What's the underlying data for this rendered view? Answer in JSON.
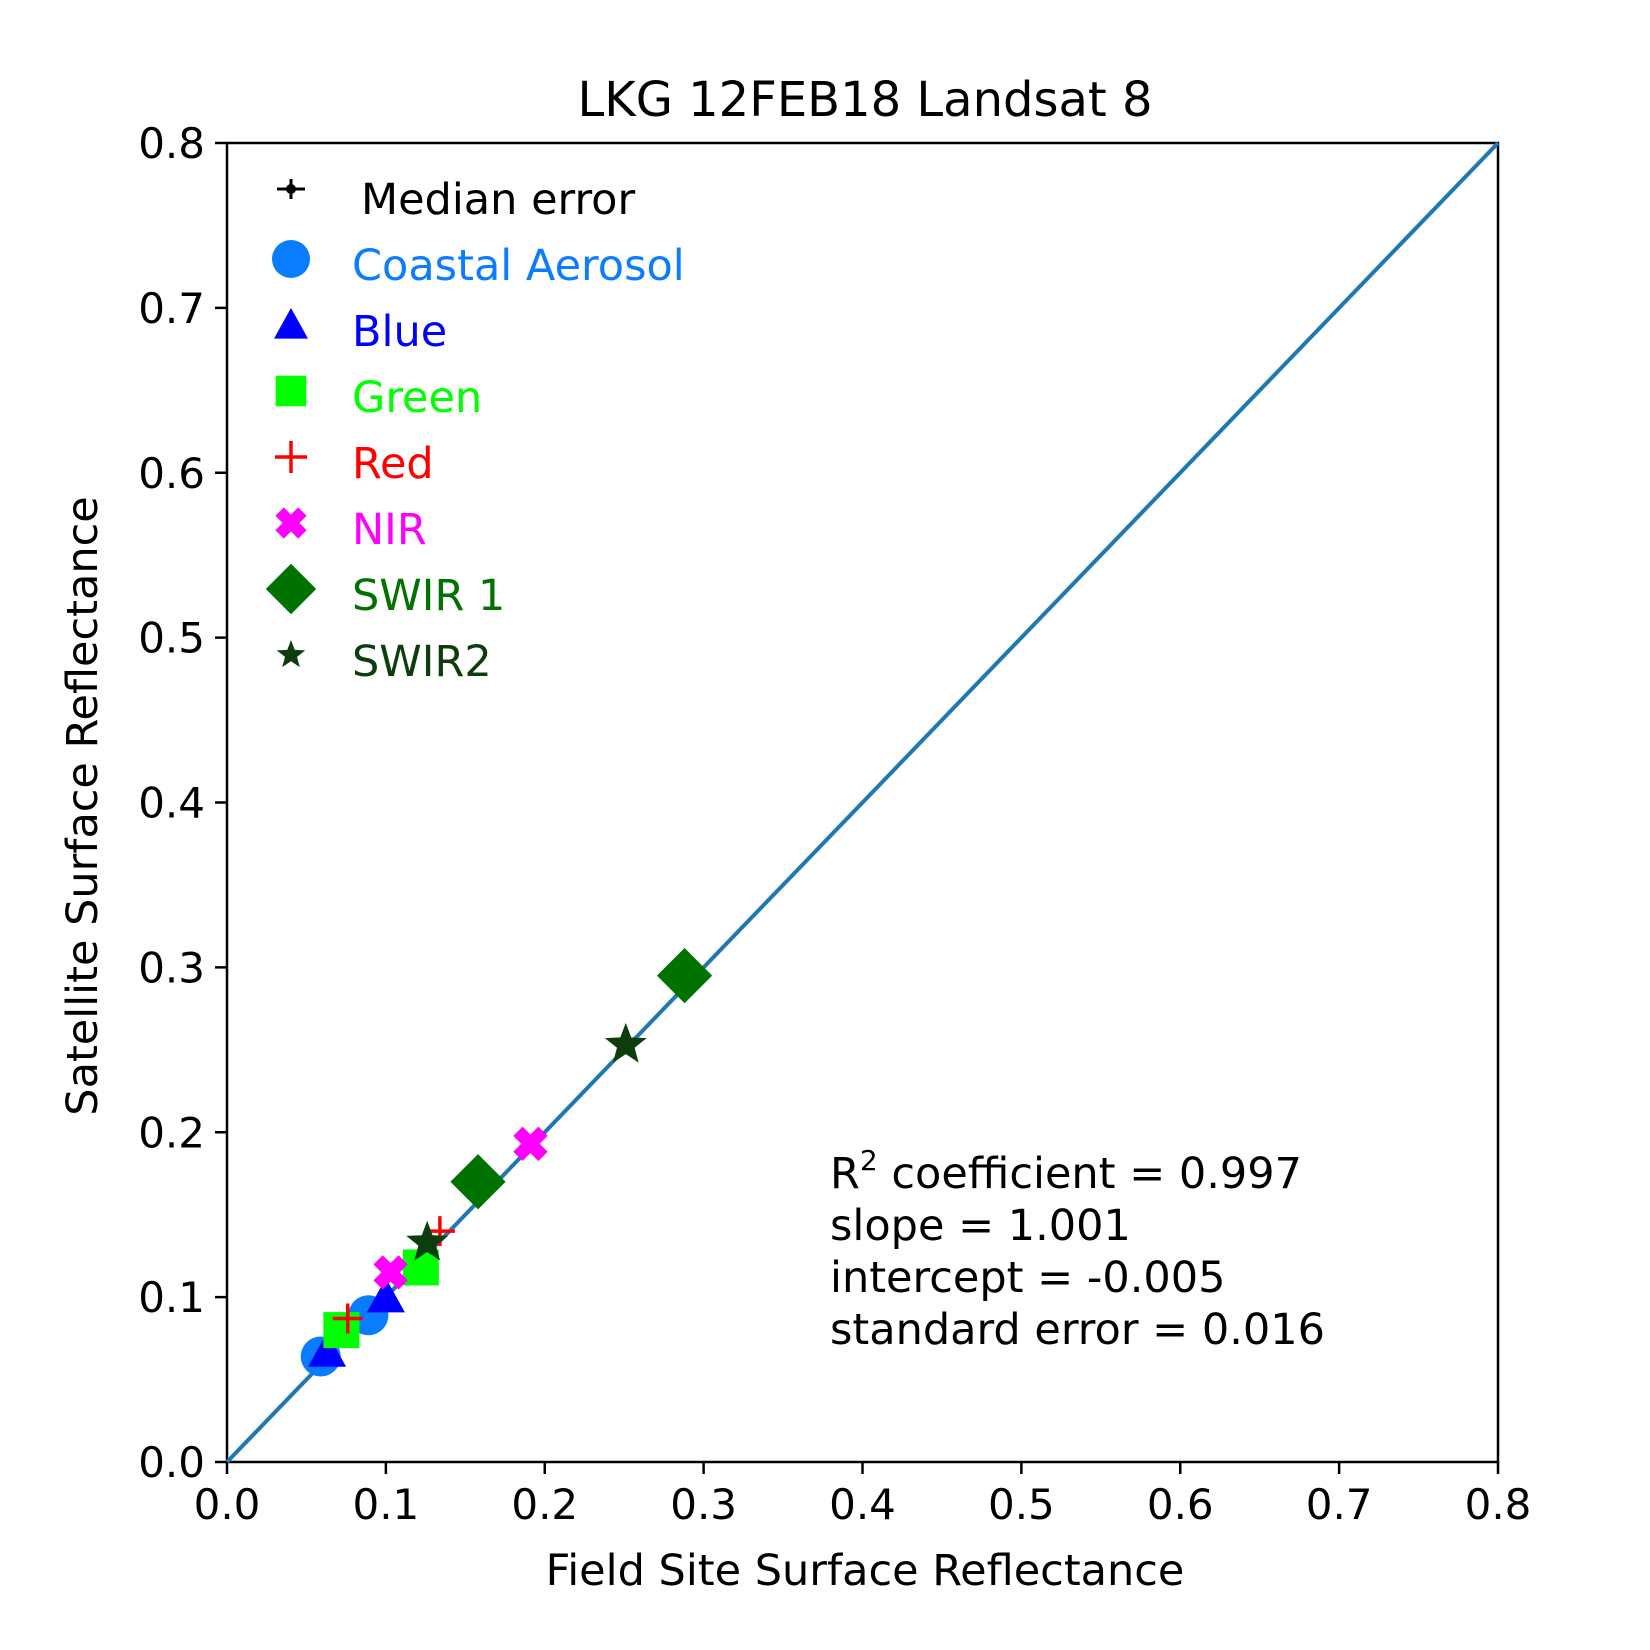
{
  "chart_data": {
    "type": "scatter",
    "title": "LKG 12FEB18 Landsat 8",
    "xlabel": "Field Site Surface Reflectance",
    "ylabel": "Satellite Surface Reflectance",
    "xlim": [
      0.0,
      0.8
    ],
    "ylim": [
      0.0,
      0.8
    ],
    "xticks": [
      "0.0",
      "0.1",
      "0.2",
      "0.3",
      "0.4",
      "0.5",
      "0.6",
      "0.7",
      "0.8"
    ],
    "yticks": [
      "0.0",
      "0.1",
      "0.2",
      "0.3",
      "0.4",
      "0.5",
      "0.6",
      "0.7",
      "0.8"
    ],
    "grid": false,
    "legend_position": "top-left",
    "reference_line": {
      "from": [
        0.0,
        0.0
      ],
      "to": [
        0.8,
        0.8
      ],
      "color": "#1f77b4"
    },
    "series": [
      {
        "name": "Median error",
        "marker": "errorbar",
        "color": "#000000",
        "points": []
      },
      {
        "name": "Coastal Aerosol",
        "marker": "circle",
        "color": "#0a7cff",
        "points": [
          {
            "x": 0.059,
            "y": 0.064
          },
          {
            "x": 0.089,
            "y": 0.089
          }
        ]
      },
      {
        "name": "Blue",
        "marker": "triangle",
        "color": "#0000ff",
        "points": [
          {
            "x": 0.063,
            "y": 0.067
          },
          {
            "x": 0.1,
            "y": 0.1
          }
        ]
      },
      {
        "name": "Green",
        "marker": "square",
        "color": "#00ff00",
        "points": [
          {
            "x": 0.072,
            "y": 0.08
          },
          {
            "x": 0.122,
            "y": 0.118
          }
        ]
      },
      {
        "name": "Red",
        "marker": "plus",
        "color": "#ff0000",
        "points": [
          {
            "x": 0.076,
            "y": 0.087
          },
          {
            "x": 0.134,
            "y": 0.14
          }
        ]
      },
      {
        "name": "NIR",
        "marker": "x",
        "color": "#ff00ff",
        "points": [
          {
            "x": 0.103,
            "y": 0.115
          },
          {
            "x": 0.191,
            "y": 0.193
          }
        ]
      },
      {
        "name": "SWIR 1",
        "marker": "diamond",
        "color": "#007200",
        "points": [
          {
            "x": 0.158,
            "y": 0.17
          },
          {
            "x": 0.288,
            "y": 0.295
          }
        ]
      },
      {
        "name": "SWIR2",
        "marker": "star",
        "color": "#0d3d0d",
        "points": [
          {
            "x": 0.126,
            "y": 0.133
          },
          {
            "x": 0.251,
            "y": 0.253
          }
        ]
      }
    ],
    "annotations": [
      {
        "lines": [
          "R",
          "2",
          " coefficient = 0.997"
        ]
      },
      {
        "lines": [
          "slope = 1.001"
        ]
      },
      {
        "lines": [
          "intercept = -0.005"
        ]
      },
      {
        "lines": [
          "standard error = 0.016"
        ]
      }
    ],
    "stats": {
      "r2_label": "R",
      "r2_sup": "2",
      "r2_rest": " coefficient = 0.997",
      "slope": "slope = 1.001",
      "intercept": "intercept = -0.005",
      "stderr": "standard error = 0.016"
    }
  }
}
